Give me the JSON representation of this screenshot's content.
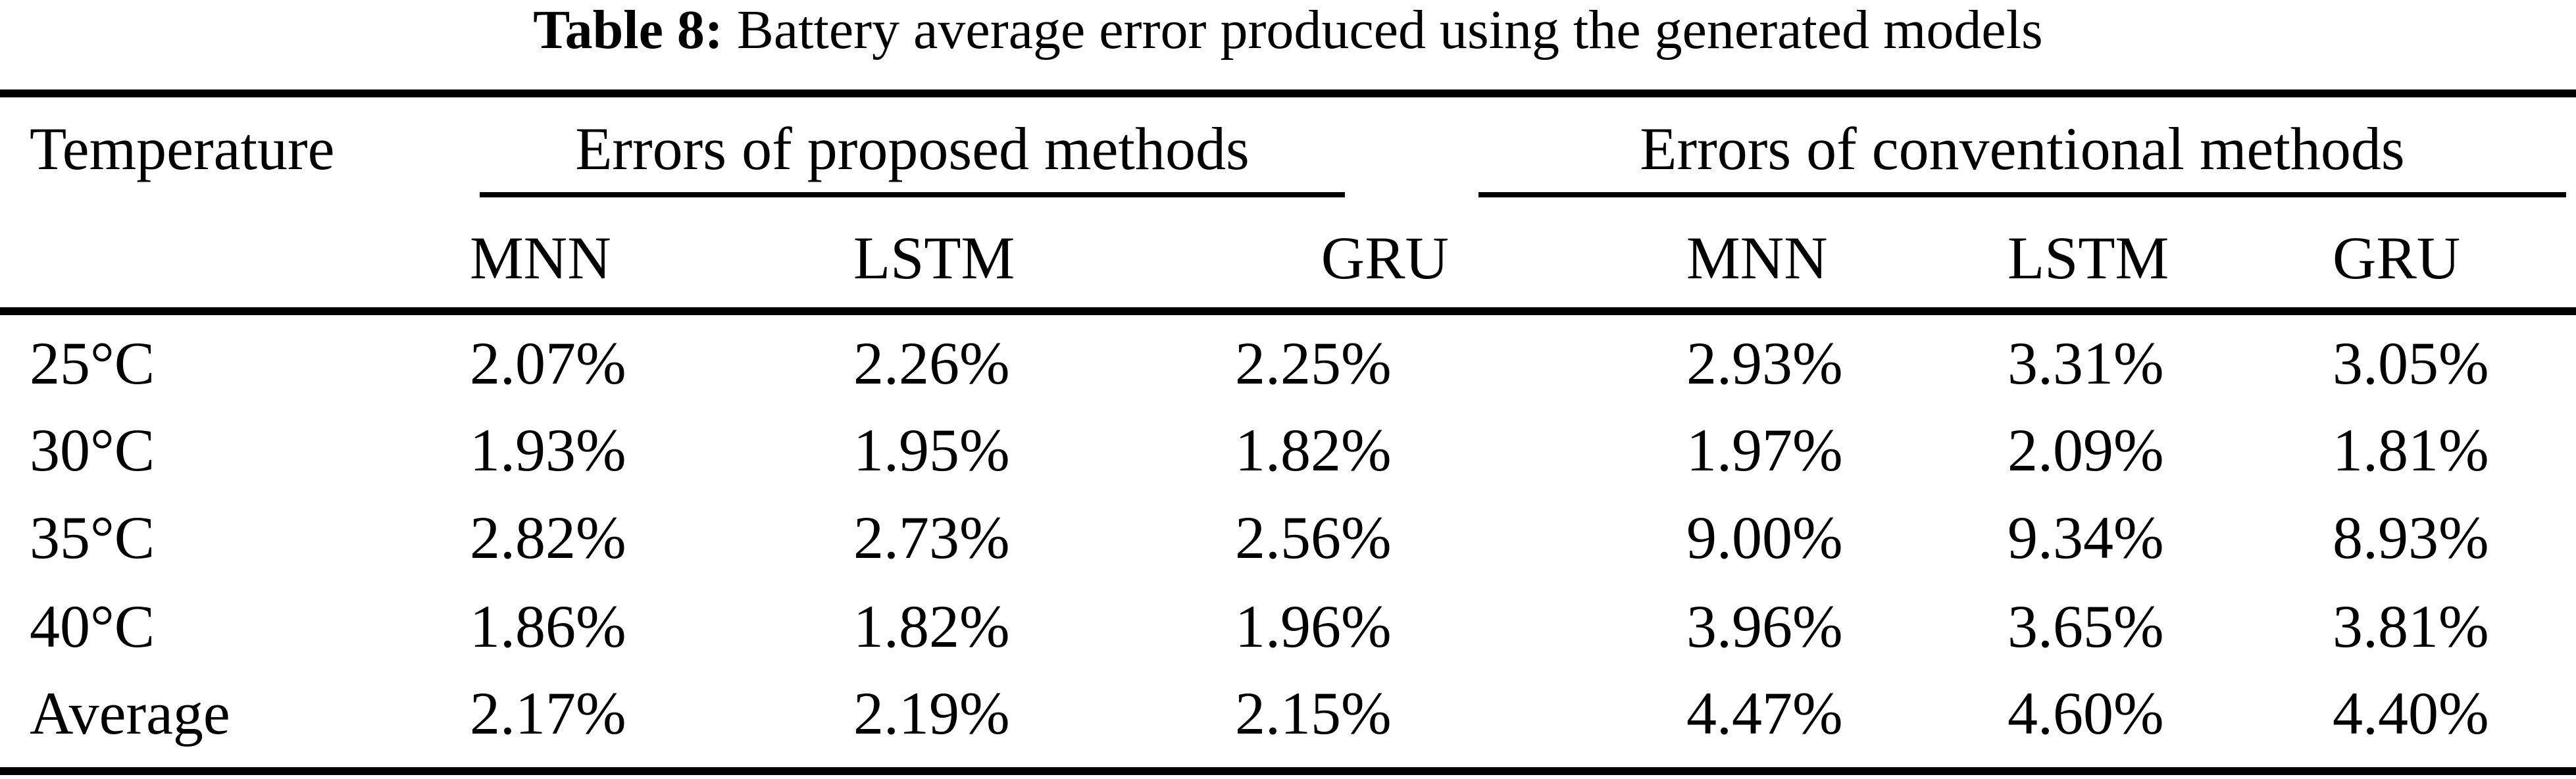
{
  "title": {
    "label": "Table 8:",
    "text": "Battery average error produced using the generated models"
  },
  "table": {
    "row_header": "Temperature",
    "groups": [
      {
        "label": "Errors of proposed methods"
      },
      {
        "label": "Errors of conventional methods"
      }
    ],
    "columns": [
      "MNN",
      "LSTM",
      "GRU",
      "MNN",
      "LSTM",
      "GRU"
    ],
    "rows": [
      {
        "label": "25°C",
        "values": [
          "2.07%",
          "2.26%",
          "2.25%",
          "2.93%",
          "3.31%",
          "3.05%"
        ]
      },
      {
        "label": "30°C",
        "values": [
          "1.93%",
          "1.95%",
          "1.82%",
          "1.97%",
          "2.09%",
          "1.81%"
        ]
      },
      {
        "label": "35°C",
        "values": [
          "2.82%",
          "2.73%",
          "2.56%",
          "9.00%",
          "9.34%",
          "8.93%"
        ]
      },
      {
        "label": "40°C",
        "values": [
          "1.86%",
          "1.82%",
          "1.96%",
          "3.96%",
          "3.65%",
          "3.81%"
        ]
      },
      {
        "label": "Average",
        "values": [
          "2.17%",
          "2.19%",
          "2.15%",
          "4.47%",
          "4.60%",
          "4.40%"
        ]
      }
    ]
  },
  "colors": {
    "text": "#000000",
    "background": "#ffffff",
    "rule": "#000000"
  },
  "chart_data": {
    "type": "table",
    "title": "Table 8: Battery average error produced using the generated models",
    "column_groups": [
      "Errors of proposed methods",
      "Errors of conventional methods"
    ],
    "categories": [
      "25°C",
      "30°C",
      "35°C",
      "40°C",
      "Average"
    ],
    "series": [
      {
        "name": "Proposed MNN",
        "values": [
          2.07,
          1.93,
          2.82,
          1.86,
          2.17
        ]
      },
      {
        "name": "Proposed LSTM",
        "values": [
          2.26,
          1.95,
          2.73,
          1.82,
          2.19
        ]
      },
      {
        "name": "Proposed GRU",
        "values": [
          2.25,
          1.82,
          2.56,
          1.96,
          2.15
        ]
      },
      {
        "name": "Conventional MNN",
        "values": [
          2.93,
          1.97,
          9.0,
          3.96,
          4.47
        ]
      },
      {
        "name": "Conventional LSTM",
        "values": [
          3.31,
          2.09,
          9.34,
          3.65,
          4.6
        ]
      },
      {
        "name": "Conventional GRU",
        "values": [
          3.05,
          1.81,
          8.93,
          3.81,
          4.4
        ]
      }
    ],
    "unit": "%"
  }
}
